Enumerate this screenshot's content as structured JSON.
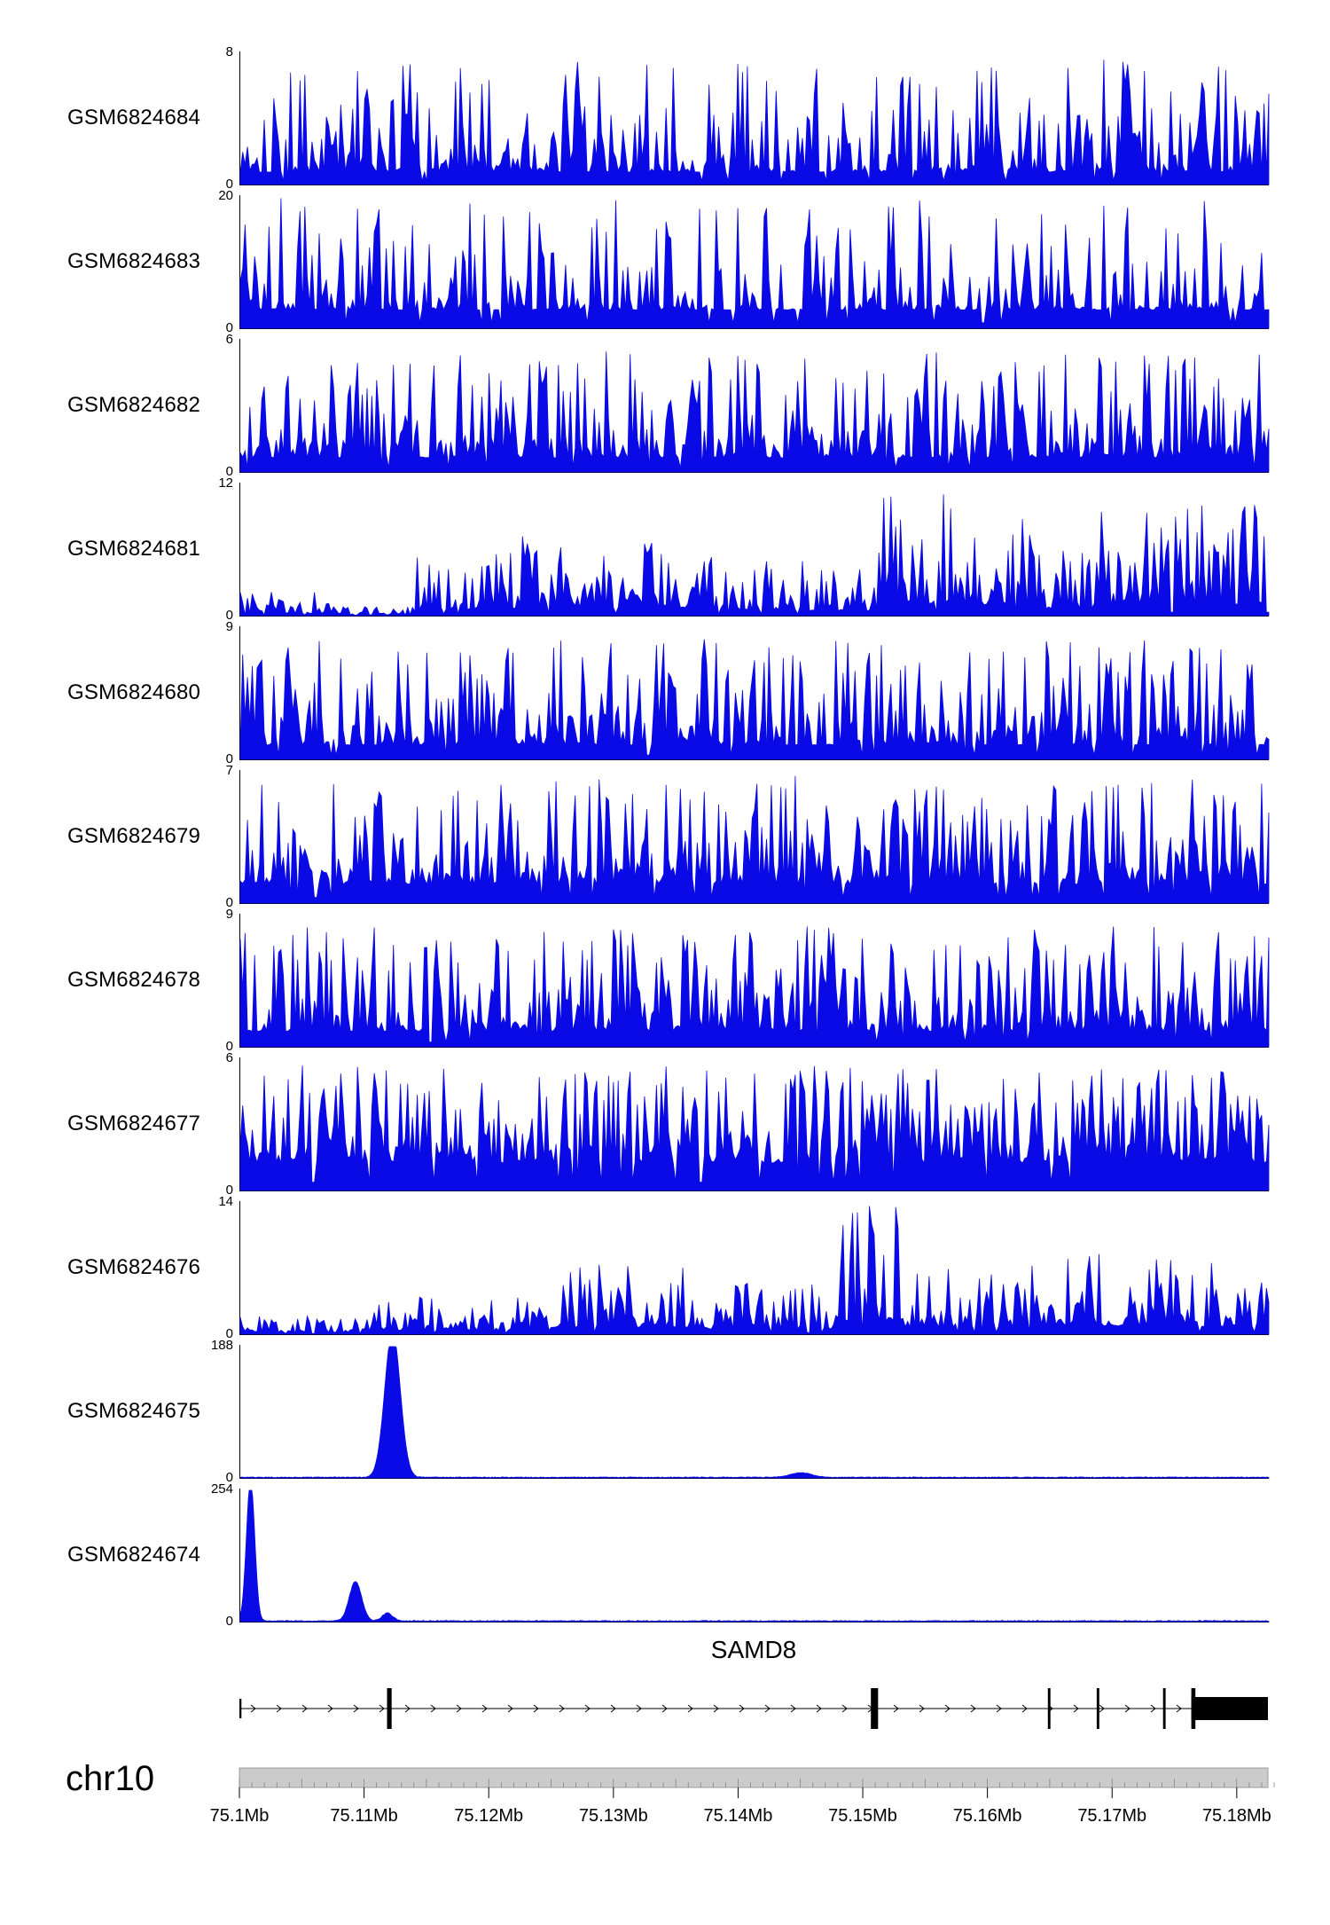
{
  "figure": {
    "signal_color": "#0A0AE6",
    "ideogram_fill": "#CBCBCB",
    "axis_color": "#000000"
  },
  "chart_data": {
    "type": "area",
    "description": "Genome browser read-coverage tracks (11 GEO samples) over chr10:75.1-75.18 Mb spanning the SAMD8 gene",
    "x_axis": {
      "label": "chr10 position (Mb)",
      "range_mb": [
        75.1,
        75.1825
      ]
    },
    "tracks": [
      {
        "id": "GSM6824684",
        "ymin": 0,
        "ymax": 8,
        "ymax_label": "8",
        "zero_label": "0",
        "type": "spiky",
        "seed": 101,
        "base": 0.1,
        "power": 2.8,
        "env": [
          [
            0,
            1,
            0.95
          ]
        ],
        "pattern": "dense uniform spikes"
      },
      {
        "id": "GSM6824683",
        "ymin": 0,
        "ymax": 20,
        "ymax_label": "20",
        "zero_label": "0",
        "type": "spiky",
        "seed": 102,
        "base": 0.14,
        "power": 3.6,
        "env": [
          [
            0,
            1,
            1.0
          ]
        ],
        "pattern": "low baseline, sparse tall spikes to 20"
      },
      {
        "id": "GSM6824682",
        "ymin": 0,
        "ymax": 6,
        "ymax_label": "6",
        "zero_label": "0",
        "type": "spiky",
        "seed": 103,
        "base": 0.12,
        "power": 2.4,
        "env": [
          [
            0,
            1,
            0.9
          ]
        ],
        "pattern": "dense uniform spikes"
      },
      {
        "id": "GSM6824681",
        "ymin": 0,
        "ymax": 12,
        "ymax_label": "12",
        "zero_label": "0",
        "type": "spiky",
        "seed": 104,
        "base": 0.1,
        "power": 2.2,
        "env": [
          [
            0,
            0.1,
            0.18
          ],
          [
            0.1,
            0.17,
            0.07
          ],
          [
            0.17,
            0.27,
            0.48
          ],
          [
            0.27,
            0.45,
            0.62
          ],
          [
            0.45,
            0.55,
            0.45
          ],
          [
            0.55,
            0.62,
            0.38
          ],
          [
            0.62,
            0.7,
            0.95
          ],
          [
            0.7,
            0.78,
            0.75
          ],
          [
            0.78,
            0.83,
            0.55
          ],
          [
            0.83,
            1,
            0.85
          ]
        ],
        "pattern": "low at left, elevated blocks mid and right"
      },
      {
        "id": "GSM6824680",
        "ymin": 0,
        "ymax": 9,
        "ymax_label": "9",
        "zero_label": "0",
        "type": "spiky",
        "seed": 105,
        "base": 0.12,
        "power": 2.7,
        "env": [
          [
            0,
            1,
            0.92
          ]
        ],
        "pattern": "dense uniform spikes"
      },
      {
        "id": "GSM6824679",
        "ymin": 0,
        "ymax": 7,
        "ymax_label": "7",
        "zero_label": "0",
        "type": "spiky",
        "seed": 106,
        "base": 0.15,
        "power": 2.2,
        "env": [
          [
            0,
            1,
            0.95
          ]
        ],
        "pattern": "dense uniform spikes"
      },
      {
        "id": "GSM6824678",
        "ymin": 0,
        "ymax": 9,
        "ymax_label": "9",
        "zero_label": "0",
        "type": "spiky",
        "seed": 107,
        "base": 0.13,
        "power": 2.6,
        "env": [
          [
            0,
            1,
            0.92
          ]
        ],
        "pattern": "dense uniform spikes"
      },
      {
        "id": "GSM6824677",
        "ymin": 0,
        "ymax": 6,
        "ymax_label": "6",
        "zero_label": "0",
        "type": "spiky",
        "seed": 108,
        "base": 0.22,
        "power": 1.8,
        "env": [
          [
            0,
            1,
            0.95
          ]
        ],
        "pattern": "dense full signal"
      },
      {
        "id": "GSM6824676",
        "ymin": 0,
        "ymax": 14,
        "ymax_label": "14",
        "zero_label": "0",
        "type": "spiky",
        "seed": 109,
        "base": 0.1,
        "power": 2.3,
        "env": [
          [
            0,
            0.13,
            0.15
          ],
          [
            0.13,
            0.3,
            0.3
          ],
          [
            0.3,
            0.45,
            0.52
          ],
          [
            0.45,
            0.58,
            0.4
          ],
          [
            0.58,
            0.64,
            1.0
          ],
          [
            0.64,
            0.78,
            0.55
          ],
          [
            0.78,
            0.9,
            0.62
          ],
          [
            0.9,
            1,
            0.58
          ]
        ],
        "pattern": "low at left, strong peak cluster near 75.15 Mb"
      },
      {
        "id": "GSM6824675",
        "ymin": 0,
        "ymax": 188,
        "ymax_label": "188",
        "zero_label": "0",
        "type": "peaks",
        "seed": 110,
        "noise": 0.006,
        "peaks": [
          {
            "pos": 0.148,
            "width": 0.0075,
            "amp": 1.12,
            "approx_mb": 75.112
          },
          {
            "pos": 0.545,
            "width": 0.01,
            "amp": 0.035,
            "approx_mb": 75.145
          }
        ],
        "pattern": "single dominant peak near 75.112 Mb"
      },
      {
        "id": "GSM6824674",
        "ymin": 0,
        "ymax": 254,
        "ymax_label": "254",
        "zero_label": "0",
        "type": "peaks",
        "seed": 111,
        "noise": 0.007,
        "peaks": [
          {
            "pos": 0.01,
            "width": 0.004,
            "amp": 1.08,
            "approx_mb": 75.101
          },
          {
            "pos": 0.112,
            "width": 0.006,
            "amp": 0.3,
            "approx_mb": 75.109
          },
          {
            "pos": 0.143,
            "width": 0.005,
            "amp": 0.06,
            "approx_mb": 75.112
          }
        ],
        "pattern": "sharp peak at left edge, smaller peak near 75.109 Mb"
      }
    ]
  },
  "gene": {
    "name": "SAMD8",
    "strand": "forward",
    "exons": [
      {
        "start": 0.0,
        "end": 0.002,
        "h": 22
      },
      {
        "start": 0.1435,
        "end": 0.148,
        "h": 46
      },
      {
        "start": 0.614,
        "end": 0.621,
        "h": 46
      },
      {
        "start": 0.786,
        "end": 0.7885,
        "h": 46
      },
      {
        "start": 0.8335,
        "end": 0.836,
        "h": 46
      },
      {
        "start": 0.898,
        "end": 0.9005,
        "h": 46
      },
      {
        "start": 0.9255,
        "end": 0.9295,
        "h": 46
      },
      {
        "start": 0.9255,
        "end": 1.0,
        "h": 26
      }
    ]
  },
  "chromosome": {
    "label": "chr10",
    "start_mb": 75.1,
    "end_mb": 75.1825,
    "tick_values": [
      75.1,
      75.11,
      75.12,
      75.13,
      75.14,
      75.15,
      75.16,
      75.17,
      75.18
    ],
    "tick_labels": [
      "75.1Mb",
      "75.11Mb",
      "75.12Mb",
      "75.13Mb",
      "75.14Mb",
      "75.15Mb",
      "75.16Mb",
      "75.17Mb",
      "75.18Mb"
    ]
  }
}
